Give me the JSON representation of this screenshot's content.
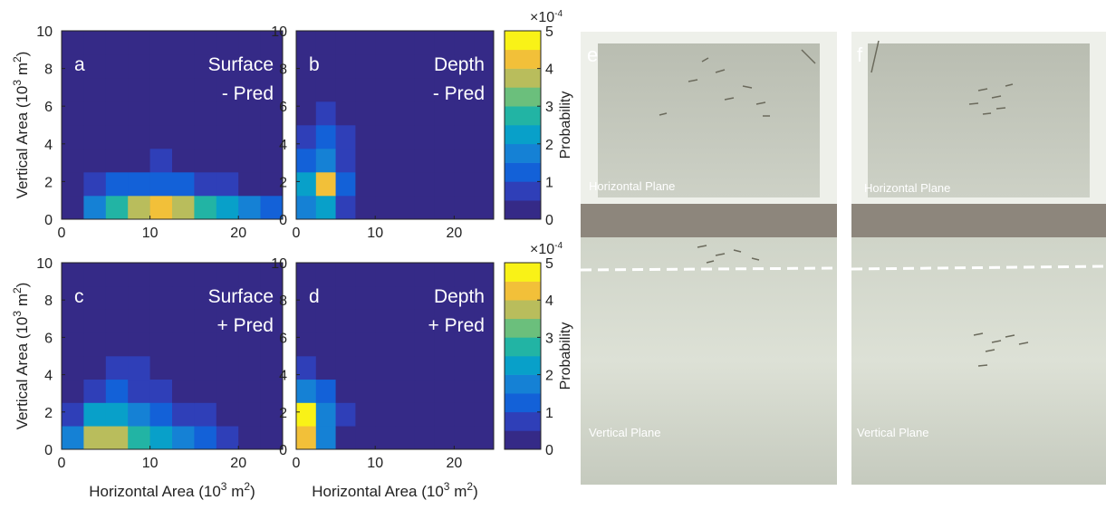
{
  "chart_data": [
    {
      "type": "heatmap",
      "panel": "a",
      "title_lines": [
        "Surface",
        "- Pred"
      ],
      "xlim": [
        0,
        25
      ],
      "ylim": [
        0,
        10
      ],
      "xticks": [
        0,
        10,
        20
      ],
      "yticks": [
        0,
        2,
        4,
        6,
        8,
        10
      ],
      "y_label": [
        "Vertical Area (10",
        "3",
        " m",
        "2",
        ")"
      ],
      "xbins": [
        0,
        2.5,
        5,
        7.5,
        10,
        12.5,
        15,
        17.5,
        20,
        22.5,
        25
      ],
      "ybins": [
        0,
        1.25,
        2.5,
        3.75,
        5,
        6.25,
        7.5,
        8.75,
        10
      ],
      "clim": [
        0,
        5
      ],
      "colormap": [
        "#352a87",
        "#2f3fb8",
        "#1361d8",
        "#1581d5",
        "#08a0c9",
        "#22b4a4",
        "#6bbf7c",
        "#b9bd5c",
        "#f2c039",
        "#f9f217"
      ],
      "z": [
        [
          0.3,
          1.5,
          2.5,
          3.5,
          4,
          3.5,
          2.5,
          2,
          1.5,
          1.2
        ],
        [
          0.1,
          0.5,
          1,
          1.2,
          1.2,
          1,
          0.8,
          0.5,
          0.4,
          0.2
        ],
        [
          0,
          0.1,
          0.3,
          0.4,
          0.5,
          0.3,
          0.2,
          0.1,
          0,
          0
        ],
        [
          0,
          0,
          0,
          0.1,
          0.1,
          0.1,
          0,
          0,
          0,
          0
        ],
        [
          0,
          0,
          0,
          0,
          0,
          0,
          0,
          0,
          0,
          0
        ],
        [
          0,
          0,
          0,
          0,
          0,
          0,
          0,
          0,
          0,
          0
        ],
        [
          0,
          0,
          0,
          0,
          0,
          0,
          0,
          0,
          0,
          0
        ],
        [
          0,
          0,
          0,
          0,
          0,
          0,
          0,
          0,
          0,
          0
        ]
      ]
    },
    {
      "type": "heatmap",
      "panel": "b",
      "title_lines": [
        "Depth",
        "- Pred"
      ],
      "xlim": [
        0,
        25
      ],
      "ylim": [
        0,
        10
      ],
      "xticks": [
        0,
        10,
        20
      ],
      "yticks": [
        0,
        2,
        4,
        6,
        8,
        10
      ],
      "xbins": [
        0,
        2.5,
        5,
        7.5,
        10,
        12.5,
        15,
        17.5,
        20,
        22.5,
        25
      ],
      "ybins": [
        0,
        1.25,
        2.5,
        3.75,
        5,
        6.25,
        7.5,
        8.75,
        10
      ],
      "clim": [
        0,
        5
      ],
      "colormap": [
        "#352a87",
        "#2f3fb8",
        "#1361d8",
        "#1581d5",
        "#08a0c9",
        "#22b4a4",
        "#6bbf7c",
        "#b9bd5c",
        "#f2c039",
        "#f9f217"
      ],
      "colorbar": {
        "lim": [
          0,
          5
        ],
        "ticks": [
          0,
          1,
          2,
          3,
          4,
          5
        ],
        "label": "Probability",
        "exponent": [
          "×10",
          "-4"
        ]
      },
      "z": [
        [
          1.5,
          2,
          0.8,
          0.3,
          0.1,
          0,
          0,
          0,
          0,
          0
        ],
        [
          2,
          4,
          1.2,
          0.4,
          0.1,
          0,
          0,
          0,
          0,
          0
        ],
        [
          1,
          1.8,
          0.8,
          0.3,
          0.1,
          0,
          0,
          0,
          0,
          0
        ],
        [
          0.5,
          1,
          0.6,
          0.2,
          0,
          0,
          0,
          0,
          0,
          0
        ],
        [
          0.3,
          0.6,
          0.3,
          0.1,
          0,
          0,
          0,
          0,
          0,
          0
        ],
        [
          0.1,
          0.3,
          0.2,
          0,
          0,
          0,
          0,
          0,
          0,
          0
        ],
        [
          0,
          0.1,
          0.1,
          0,
          0,
          0,
          0,
          0,
          0,
          0
        ],
        [
          0,
          0,
          0,
          0,
          0,
          0,
          0,
          0,
          0,
          0
        ]
      ]
    },
    {
      "type": "heatmap",
      "panel": "c",
      "title_lines": [
        "Surface",
        "+ Pred"
      ],
      "xlim": [
        0,
        25
      ],
      "ylim": [
        0,
        10
      ],
      "xticks": [
        0,
        10,
        20
      ],
      "yticks": [
        0,
        2,
        4,
        6,
        8,
        10
      ],
      "x_label": [
        "Horizontal Area (10",
        "3",
        " m",
        "2",
        ")"
      ],
      "y_label": [
        "Vertical Area (10",
        "3",
        " m",
        "2",
        ")"
      ],
      "xbins": [
        0,
        2.5,
        5,
        7.5,
        10,
        12.5,
        15,
        17.5,
        20,
        22.5,
        25
      ],
      "ybins": [
        0,
        1.25,
        2.5,
        3.75,
        5,
        6.25,
        7.5,
        8.75,
        10
      ],
      "clim": [
        0,
        5
      ],
      "colormap": [
        "#352a87",
        "#2f3fb8",
        "#1361d8",
        "#1581d5",
        "#08a0c9",
        "#22b4a4",
        "#6bbf7c",
        "#b9bd5c",
        "#f2c039",
        "#f9f217"
      ],
      "z": [
        [
          1.5,
          3.5,
          3.5,
          2.5,
          2,
          1.5,
          1,
          0.6,
          0.3,
          0.1
        ],
        [
          0.8,
          2,
          2.2,
          1.8,
          1.3,
          0.9,
          0.6,
          0.3,
          0.1,
          0
        ],
        [
          0.2,
          0.8,
          1,
          0.9,
          0.7,
          0.4,
          0.2,
          0.1,
          0,
          0
        ],
        [
          0,
          0.3,
          0.5,
          0.5,
          0.3,
          0.2,
          0.1,
          0,
          0,
          0
        ],
        [
          0,
          0.1,
          0.1,
          0.1,
          0.1,
          0,
          0,
          0,
          0,
          0
        ],
        [
          0,
          0,
          0,
          0,
          0,
          0,
          0,
          0,
          0,
          0
        ],
        [
          0,
          0,
          0,
          0,
          0,
          0,
          0,
          0,
          0,
          0
        ],
        [
          0,
          0,
          0,
          0,
          0,
          0,
          0,
          0,
          0,
          0
        ]
      ]
    },
    {
      "type": "heatmap",
      "panel": "d",
      "title_lines": [
        "Depth",
        "+ Pred"
      ],
      "xlim": [
        0,
        25
      ],
      "ylim": [
        0,
        10
      ],
      "xticks": [
        0,
        10,
        20
      ],
      "yticks": [
        0,
        2,
        4,
        6,
        8,
        10
      ],
      "x_label": [
        "Horizontal Area (10",
        "3",
        " m",
        "2",
        ")"
      ],
      "xbins": [
        0,
        2.5,
        5,
        7.5,
        10,
        12.5,
        15,
        17.5,
        20,
        22.5,
        25
      ],
      "ybins": [
        0,
        1.25,
        2.5,
        3.75,
        5,
        6.25,
        7.5,
        8.75,
        10
      ],
      "clim": [
        0,
        5
      ],
      "colormap": [
        "#352a87",
        "#2f3fb8",
        "#1361d8",
        "#1581d5",
        "#08a0c9",
        "#22b4a4",
        "#6bbf7c",
        "#b9bd5c",
        "#f2c039",
        "#f9f217"
      ],
      "colorbar": {
        "lim": [
          0,
          5
        ],
        "ticks": [
          0,
          1,
          2,
          3,
          4,
          5
        ],
        "label": "Probability",
        "exponent": [
          "×10",
          "-4"
        ]
      },
      "z": [
        [
          4,
          1.5,
          0.4,
          0.1,
          0,
          0,
          0,
          0,
          0,
          0
        ],
        [
          5,
          1.8,
          0.5,
          0.1,
          0,
          0,
          0,
          0,
          0,
          0
        ],
        [
          1.5,
          1,
          0.3,
          0,
          0,
          0,
          0,
          0,
          0,
          0
        ],
        [
          0.6,
          0.4,
          0.1,
          0,
          0,
          0,
          0,
          0,
          0,
          0
        ],
        [
          0.2,
          0.2,
          0,
          0,
          0,
          0,
          0,
          0,
          0,
          0
        ],
        [
          0,
          0,
          0,
          0,
          0,
          0,
          0,
          0,
          0,
          0
        ],
        [
          0,
          0,
          0,
          0,
          0,
          0,
          0,
          0,
          0,
          0
        ],
        [
          0,
          0,
          0,
          0,
          0,
          0,
          0,
          0,
          0,
          0
        ]
      ]
    }
  ],
  "photos": [
    {
      "label": "e",
      "top_caption": "Horizontal Plane",
      "bottom_caption": "Vertical Plane"
    },
    {
      "label": "f",
      "top_caption": "Horizontal Plane",
      "bottom_caption": "Vertical Plane"
    }
  ]
}
